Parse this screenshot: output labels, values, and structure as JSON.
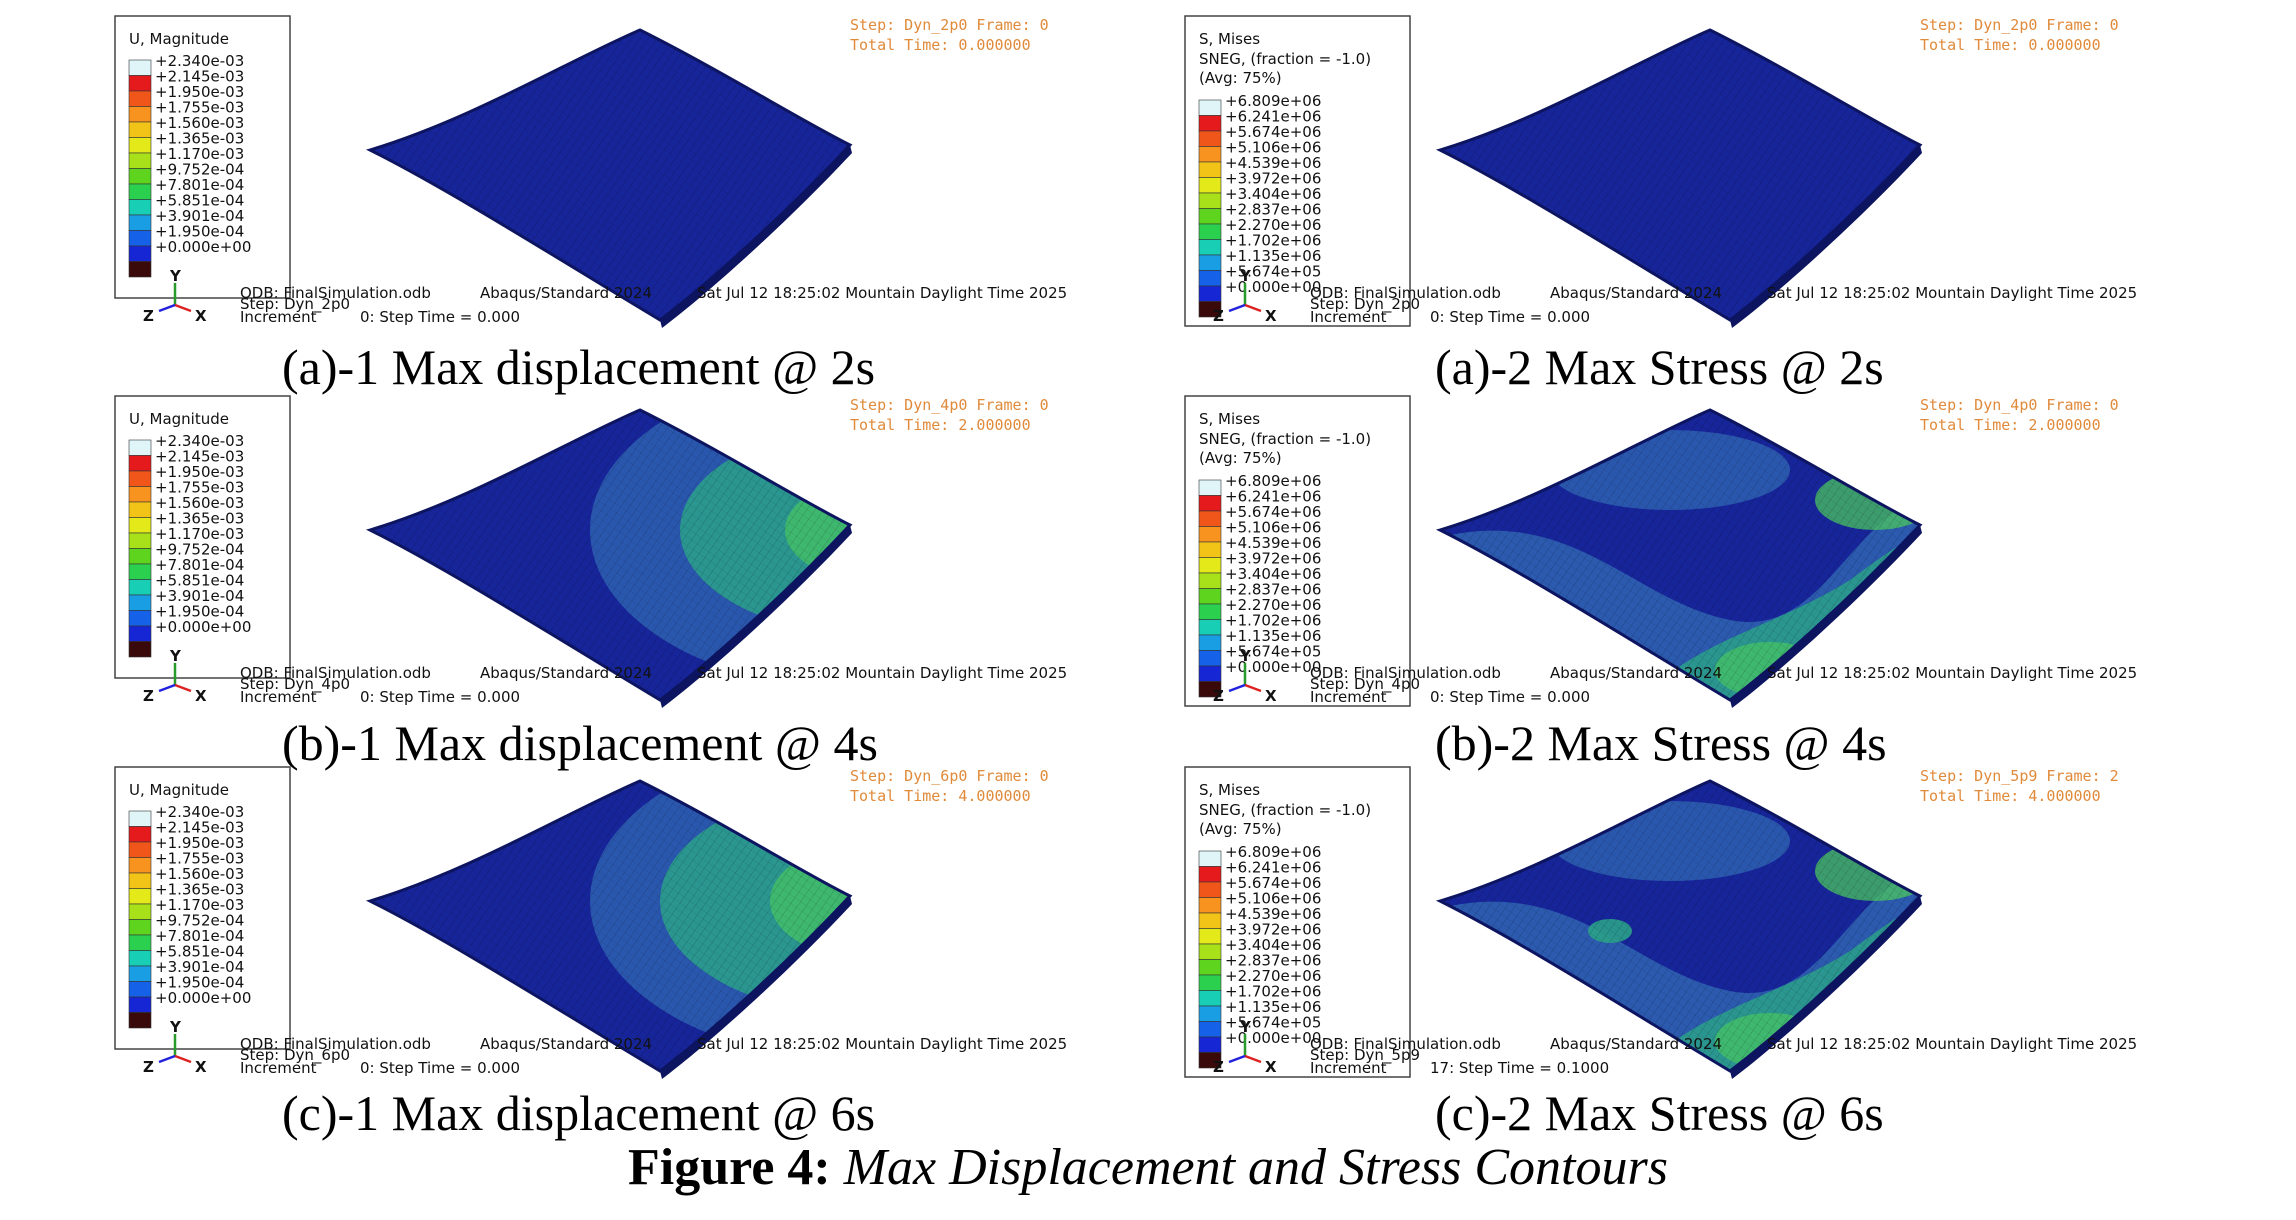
{
  "figure": {
    "number_label": "Figure 4:",
    "title": "Max Displacement and Stress Contours"
  },
  "displacement_legend": {
    "title": "U, Magnitude",
    "subtitle": [],
    "values": [
      "+2.340e-03",
      "+2.145e-03",
      "+1.950e-03",
      "+1.755e-03",
      "+1.560e-03",
      "+1.365e-03",
      "+1.170e-03",
      "+9.752e-04",
      "+7.801e-04",
      "+5.851e-04",
      "+3.901e-04",
      "+1.950e-04",
      "+0.000e+00"
    ]
  },
  "stress_legend": {
    "title": "S, Mises",
    "subtitle": [
      "SNEG, (fraction = -1.0)",
      "(Avg: 75%)"
    ],
    "values": [
      "+6.809e+06",
      "+6.241e+06",
      "+5.674e+06",
      "+5.106e+06",
      "+4.539e+06",
      "+3.972e+06",
      "+3.404e+06",
      "+2.837e+06",
      "+2.270e+06",
      "+1.702e+06",
      "+1.135e+06",
      "+5.674e+05",
      "+0.000e+00"
    ]
  },
  "legend_colors": [
    "#dff5f7",
    "#e41a1c",
    "#f0561a",
    "#f7931e",
    "#f2c418",
    "#e4e91a",
    "#a8e01a",
    "#5fd41f",
    "#2bd14e",
    "#18cfb5",
    "#1a9ee3",
    "#1561e8",
    "#1626d4",
    "#3a0a0a"
  ],
  "mesh_colors": {
    "base": "#17259a",
    "edge": "#0d1560",
    "light": "#2f64b3",
    "green": "#2aa18a",
    "bright": "#4fcf5a"
  },
  "db_info": {
    "odb": "ODB: FinalSimulation.odb",
    "solver": "Abaqus/Standard 2024",
    "date": "Sat Jul 12 18:25:02 Mountain Daylight Time 2025",
    "increment_label": "Increment"
  },
  "triad": {
    "y": "Y",
    "z": "Z",
    "x": "X"
  },
  "panels": [
    {
      "id": "a1",
      "kind": "disp",
      "step_line": "Step: Dyn_2p0   Frame: 0",
      "time_line": "Total Time: 0.000000",
      "step_info": "Step: Dyn_2p0",
      "increment_info": "0: Step Time =    0.000",
      "contour": 0,
      "caption": "(a)-1 Max displacement @ 2s"
    },
    {
      "id": "a2",
      "kind": "stress",
      "step_line": "Step: Dyn_2p0   Frame: 0",
      "time_line": "Total Time: 0.000000",
      "step_info": "Step: Dyn_2p0",
      "increment_info": "0: Step Time =    0.000",
      "contour": 0,
      "caption": "(a)-2 Max Stress @ 2s"
    },
    {
      "id": "b1",
      "kind": "disp",
      "step_line": "Step: Dyn_4p0   Frame: 0",
      "time_line": "Total Time: 2.000000",
      "step_info": "Step: Dyn_4p0",
      "increment_info": "0: Step Time =    0.000",
      "contour": 1,
      "caption": "(b)-1 Max displacement @ 4s"
    },
    {
      "id": "b2",
      "kind": "stress",
      "step_line": "Step: Dyn_4p0   Frame: 0",
      "time_line": "Total Time: 2.000000",
      "step_info": "Step: Dyn_4p0",
      "increment_info": "0: Step Time =    0.000",
      "contour": 1,
      "caption": "(b)-2 Max Stress @ 4s"
    },
    {
      "id": "c1",
      "kind": "disp",
      "step_line": "Step: Dyn_6p0   Frame: 0",
      "time_line": "Total Time: 4.000000",
      "step_info": "Step: Dyn_6p0",
      "increment_info": "0: Step Time =    0.000",
      "contour": 2,
      "caption": "(c)-1 Max displacement @ 6s"
    },
    {
      "id": "c2",
      "kind": "stress",
      "step_line": "Step: Dyn_5p9   Frame: 2",
      "time_line": "Total Time: 4.000000",
      "step_info": "Step: Dyn_5p9",
      "increment_info": "17: Step Time =    0.1000",
      "contour": 2,
      "caption": "(c)-2 Max Stress @ 6s"
    }
  ]
}
